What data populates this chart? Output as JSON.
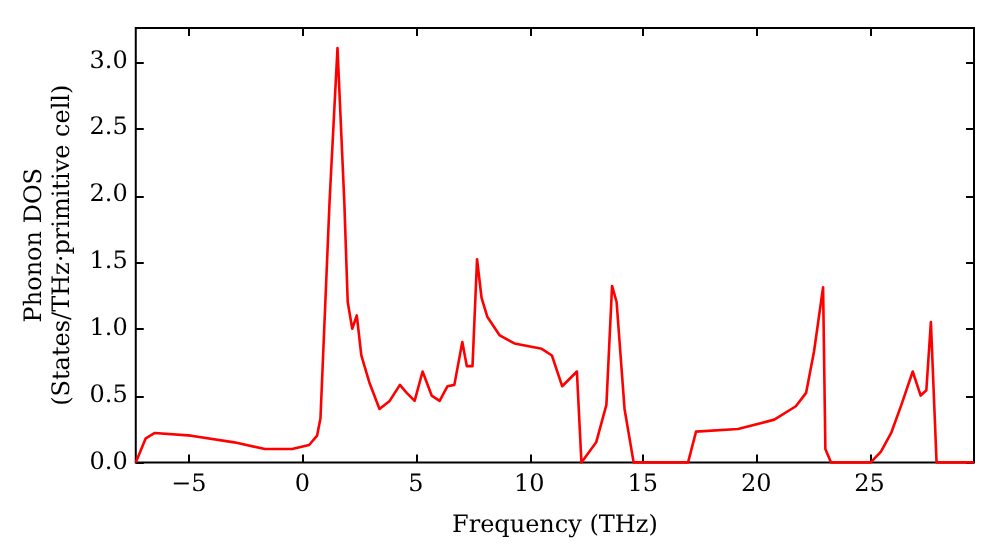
{
  "chart_data": {
    "type": "line",
    "xlabel": "Frequency (THz)",
    "ylabel": "Phonon DOS\n(States/THz·primitive cell)",
    "xlim": [
      -7.34,
      29.6
    ],
    "ylim": [
      0,
      3.25
    ],
    "xticks": [
      {
        "value": -5,
        "label": "−5"
      },
      0,
      5,
      10,
      15,
      20,
      25
    ],
    "yticks": [
      {
        "value": 0,
        "label": "0.0"
      },
      {
        "value": 0.5,
        "label": "0.5"
      },
      {
        "value": 1,
        "label": "1.0"
      },
      {
        "value": 1.5,
        "label": "1.5"
      },
      {
        "value": 2,
        "label": "2.0"
      },
      {
        "value": 2.5,
        "label": "2.5"
      },
      {
        "value": 3,
        "label": "3.0"
      }
    ],
    "grid": false,
    "legend": false,
    "marker": "none",
    "line_style": "solid",
    "series": [
      {
        "color": "#ff0000",
        "x": [
          -7.34,
          -6.9,
          -6.5,
          -4.9,
          -3.0,
          -1.65,
          -0.45,
          0.3,
          0.65,
          0.8,
          1.2,
          1.55,
          1.85,
          2.0,
          2.2,
          2.4,
          2.6,
          2.95,
          3.4,
          3.85,
          4.3,
          4.6,
          4.95,
          5.3,
          5.7,
          6.05,
          6.4,
          6.7,
          7.05,
          7.25,
          7.5,
          7.7,
          7.9,
          8.15,
          8.7,
          9.35,
          10.55,
          11.0,
          11.45,
          12.1,
          12.3,
          12.95,
          13.4,
          13.65,
          13.85,
          14.2,
          14.6,
          17.0,
          17.35,
          19.2,
          20.8,
          21.75,
          22.2,
          22.55,
          22.95,
          23.05,
          23.3,
          25.05,
          25.5,
          25.95,
          26.4,
          26.9,
          27.25,
          27.5,
          27.7,
          27.95,
          29.6
        ],
        "values": [
          0,
          0.18,
          0.22,
          0.2,
          0.15,
          0.1,
          0.1,
          0.13,
          0.2,
          0.33,
          1.95,
          3.1,
          1.95,
          1.2,
          1.0,
          1.1,
          0.8,
          0.6,
          0.4,
          0.46,
          0.58,
          0.52,
          0.46,
          0.68,
          0.5,
          0.46,
          0.57,
          0.58,
          0.9,
          0.72,
          0.72,
          1.52,
          1.23,
          1.09,
          0.95,
          0.89,
          0.85,
          0.8,
          0.57,
          0.68,
          0,
          0.15,
          0.43,
          1.32,
          1.2,
          0.4,
          0,
          0,
          0.23,
          0.25,
          0.32,
          0.42,
          0.52,
          0.83,
          1.31,
          0.1,
          0,
          0,
          0.08,
          0.22,
          0.43,
          0.68,
          0.5,
          0.54,
          1.05,
          0,
          0
        ]
      }
    ]
  }
}
